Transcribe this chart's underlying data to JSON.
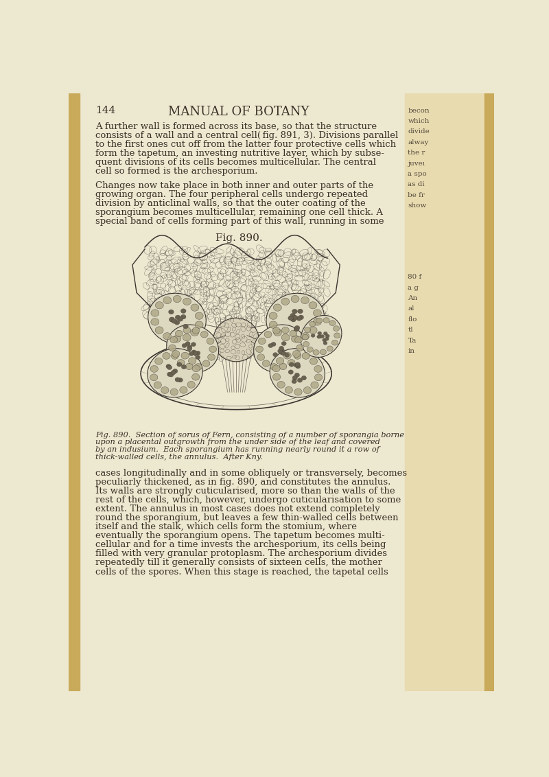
{
  "page_number": "144",
  "header": "MANUAL OF BOTANY",
  "bg_color": "#ede8d0",
  "text_color": "#3a3228",
  "fig_caption_label": "Fig. 890.",
  "left_bar_color": "#c8aa5a",
  "right_side_color": "#e8dbb0",
  "header_font_size": 13,
  "body_font_size": 9.5,
  "caption_font_size": 8.2,
  "page_num_font_size": 11,
  "para1_lines": [
    "A further wall is formed across its base, so that the structure",
    "consists of a wall and a central cell( fig. 891, 3). Divisions parallel",
    "to the first ones cut off from the latter four protective cells which",
    "form the tapetum, an investing nutritive layer, which by subse-",
    "quent divisions of its cells becomes multicellular. The central",
    "cell so formed is the archesporium."
  ],
  "para2_lines": [
    "Changes now take place in both inner and outer parts of the",
    "growing organ. The four peripheral cells undergo repeated",
    "division by anticlinal walls, so that the outer coating of the",
    "sporangium becomes multicellular, remaining one cell thick. A",
    "special band of cells forming part of this wall, running in some"
  ],
  "para3_lines": [
    "cases longitudinally and in some obliquely or transversely, becomes",
    "peculiarly thickened, as in fig. 890, and constitutes the annulus.",
    "Its walls are strongly cuticularised, more so than the walls of the",
    "rest of the cells, which, however, undergo cuticularisation to some",
    "extent. The annulus in most cases does not extend completely",
    "round the sporangium, but leaves a few thin-walled cells between",
    "itself and the stalk, which cells form the stomium, where",
    "eventually the sporangium opens. The tapetum becomes multi-",
    "cellular and for a time invests the archesporium, its cells being",
    "filled with very granular protoplasm. The archesporium divides",
    "repeatedly till it generally consists of sixteen cells, the mother",
    "cells of the spores. When this stage is reached, the tapetal cells"
  ],
  "cap_lines": [
    "Fig. 890.  Section of sorus of Fern, consisting of a number of sporangia borne",
    "upon a placental outgrowth from the under side of the leaf and covered",
    "by an indusium.  Each sporangium has running nearly round it a row of",
    "thick-walled cells, the annulus.  After Kny."
  ],
  "right_margin_top": [
    "becon",
    "which",
    "dividе",
    "alway",
    "the r",
    "juveı",
    "a spo",
    "as di",
    "be fr",
    "show"
  ],
  "right_margin_bot": [
    "80 f",
    "a g",
    "An",
    "al",
    "flo",
    "tl",
    "Ta",
    "in"
  ]
}
